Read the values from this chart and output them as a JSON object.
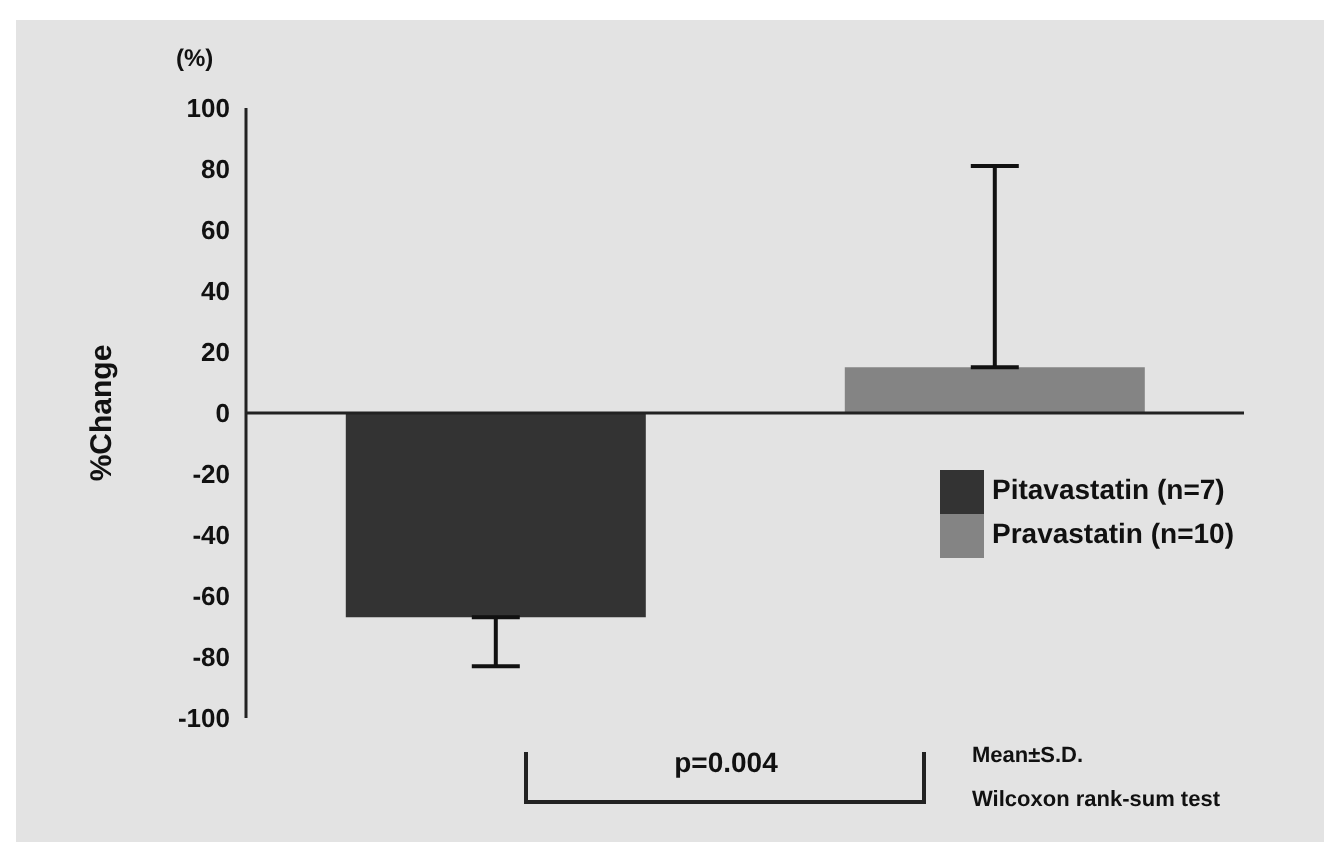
{
  "chart_data": {
    "type": "bar",
    "ylabel": "%Change",
    "categories": [
      null,
      null
    ],
    "series": [
      {
        "name": "Pitavastatin (n=7)",
        "color": "#333333",
        "values": [
          -67,
          null
        ],
        "errors": [
          [
            -83,
            -67
          ],
          null
        ]
      },
      {
        "name": "Pravastatin (n=10)",
        "color": "#848484",
        "values": [
          null,
          15
        ],
        "errors": [
          null,
          [
            15,
            81
          ]
        ]
      }
    ],
    "ylim": [
      -100,
      100
    ],
    "yticks": [
      -100,
      -80,
      -60,
      -40,
      -20,
      0,
      20,
      40,
      60,
      80,
      100
    ],
    "legend": "right",
    "annotations": [
      "(%)",
      "p=0.004",
      "Mean±S.D.",
      "Wilcoxon rank-sum test"
    ]
  }
}
